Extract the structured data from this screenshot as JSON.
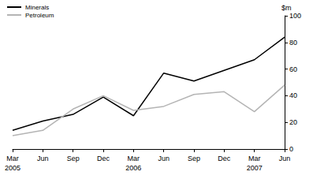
{
  "chart_data": {
    "type": "line",
    "categories": [
      "Mar\n2005",
      "Jun",
      "Sep",
      "Dec",
      "Mar\n2006",
      "Jun",
      "Sep",
      "Dec",
      "Mar\n2007",
      "Jun"
    ],
    "series": [
      {
        "name": "Minerals",
        "color": "#000000",
        "values": [
          14,
          21,
          26,
          39,
          25,
          57,
          51,
          59,
          67,
          84
        ]
      },
      {
        "name": "Petroleum",
        "color": "#b4b4b4",
        "values": [
          10,
          14,
          30,
          40,
          29,
          32,
          41,
          43,
          28,
          48
        ]
      }
    ],
    "y_label": "$m",
    "ylim": [
      0,
      100
    ],
    "yticks": [
      0,
      20,
      40,
      60,
      80,
      100
    ],
    "grid": false,
    "legend": "top-left"
  }
}
